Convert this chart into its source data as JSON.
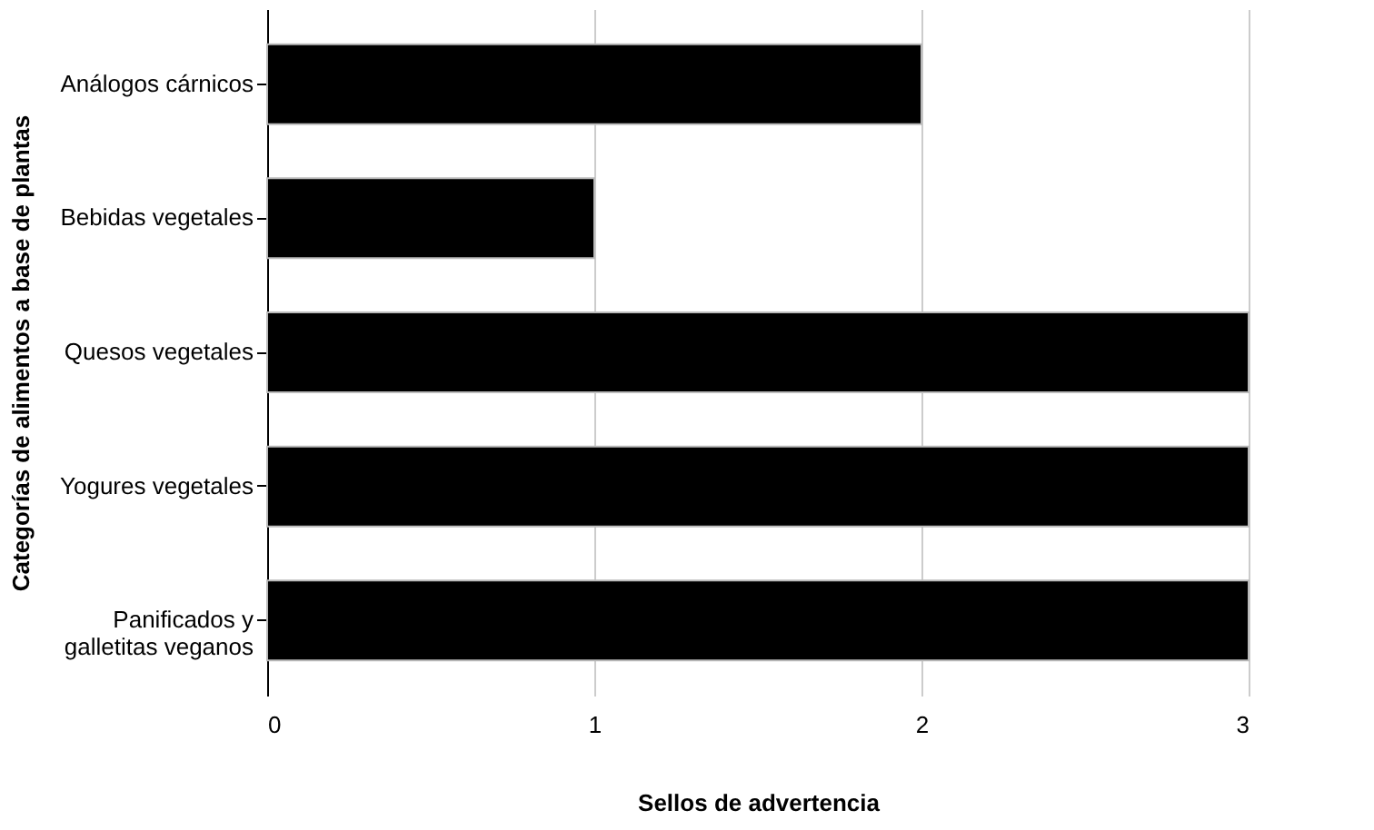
{
  "chart_data": {
    "type": "bar",
    "orientation": "horizontal",
    "xlabel": "Sellos de advertencia",
    "ylabel": "Categorías de alimentos a base de plantas",
    "categories": [
      "Análogos cárnicos",
      "Bebidas vegetales",
      "Quesos vegetales",
      "Yogures vegetales",
      "Panificados y\ngalletitas veganos"
    ],
    "values": [
      2,
      1,
      3,
      3,
      3
    ],
    "color": "#000000",
    "xlim": [
      0,
      3
    ],
    "xticks": [
      0,
      1,
      2,
      3
    ],
    "grid": "x"
  }
}
